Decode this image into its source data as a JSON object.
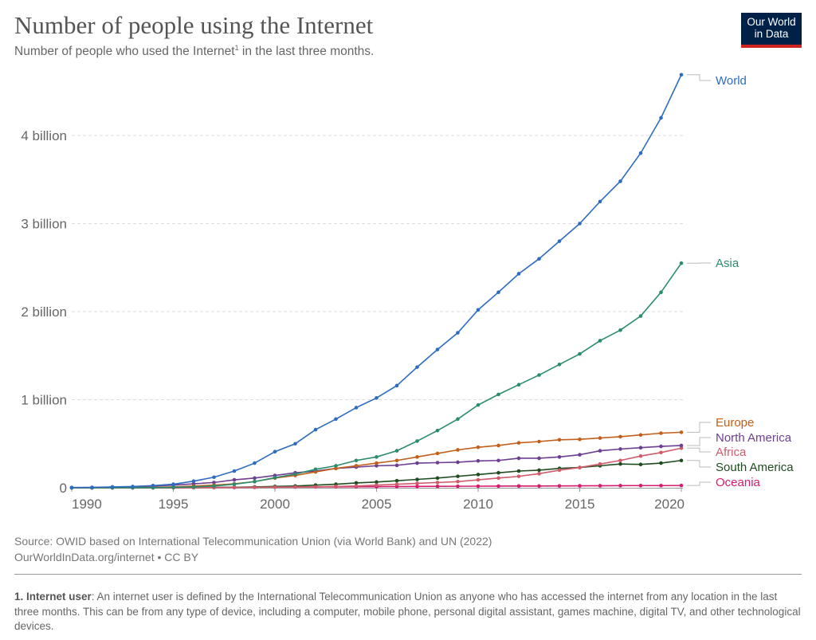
{
  "header": {
    "title": "Number of people using the Internet",
    "subtitle_pre": "Number of people who used the Internet",
    "subtitle_sup": "1",
    "subtitle_post": " in the last three months.",
    "logo_line1": "Our World",
    "logo_line2": "in Data"
  },
  "footer": {
    "source": "Source: OWID based on International Telecommunication Union (via World Bank) and UN (2022)",
    "link": "OurWorldInData.org/internet • CC BY",
    "note_title": "1. Internet user",
    "note_text": ": An internet user is defined by the International Telecommunication Union as anyone who has accessed the internet from any location in the last three months. This can be from any type of device, including a computer, mobile phone, personal digital assistant, games machine, digital TV, and other technological devices."
  },
  "chart_data": {
    "type": "line",
    "title": "Number of people using the Internet",
    "x": [
      1990,
      1991,
      1992,
      1993,
      1994,
      1995,
      1996,
      1997,
      1998,
      1999,
      2000,
      2001,
      2002,
      2003,
      2004,
      2005,
      2006,
      2007,
      2008,
      2009,
      2010,
      2011,
      2012,
      2013,
      2014,
      2015,
      2016,
      2017,
      2018,
      2019,
      2020
    ],
    "xlim": [
      1990,
      2020
    ],
    "ylim": [
      0,
      4.8
    ],
    "x_ticks": [
      {
        "value": 1990,
        "label": "1990"
      },
      {
        "value": 1995,
        "label": "1995"
      },
      {
        "value": 2000,
        "label": "2000"
      },
      {
        "value": 2005,
        "label": "2005"
      },
      {
        "value": 2010,
        "label": "2010"
      },
      {
        "value": 2015,
        "label": "2015"
      },
      {
        "value": 2020,
        "label": "2020"
      }
    ],
    "y_ticks": [
      {
        "value": 0,
        "label": "0"
      },
      {
        "value": 1,
        "label": "1 billion"
      },
      {
        "value": 2,
        "label": "2 billion"
      },
      {
        "value": 3,
        "label": "3 billion"
      },
      {
        "value": 4,
        "label": "4 billion"
      }
    ],
    "y_unit": "billion",
    "grid": "horizontal dashed",
    "legend": "right, labels at line ends",
    "series": [
      {
        "name": "World",
        "color": "#2d6cc0",
        "values": [
          0.003,
          0.004,
          0.01,
          0.014,
          0.025,
          0.04,
          0.075,
          0.12,
          0.19,
          0.28,
          0.41,
          0.5,
          0.66,
          0.78,
          0.91,
          1.02,
          1.16,
          1.37,
          1.57,
          1.76,
          2.02,
          2.22,
          2.43,
          2.6,
          2.8,
          3.0,
          3.25,
          3.48,
          3.8,
          4.2,
          4.69
        ]
      },
      {
        "name": "Asia",
        "color": "#2a8c6e",
        "values": [
          0,
          0,
          0,
          0.001,
          0.002,
          0.005,
          0.01,
          0.02,
          0.04,
          0.07,
          0.115,
          0.155,
          0.21,
          0.25,
          0.31,
          0.35,
          0.42,
          0.53,
          0.65,
          0.78,
          0.94,
          1.06,
          1.17,
          1.28,
          1.4,
          1.52,
          1.67,
          1.79,
          1.95,
          2.22,
          2.55
        ]
      },
      {
        "name": "Europe",
        "color": "#c15f1b",
        "values": [
          0,
          0,
          0.001,
          0.002,
          0.005,
          0.01,
          0.02,
          0.03,
          0.045,
          0.07,
          0.11,
          0.14,
          0.18,
          0.22,
          0.25,
          0.28,
          0.31,
          0.35,
          0.39,
          0.43,
          0.46,
          0.48,
          0.51,
          0.525,
          0.545,
          0.55,
          0.565,
          0.58,
          0.6,
          0.62,
          0.63
        ]
      },
      {
        "name": "North America",
        "color": "#6d3e91",
        "values": [
          0.002,
          0.003,
          0.005,
          0.01,
          0.02,
          0.03,
          0.045,
          0.06,
          0.09,
          0.11,
          0.14,
          0.17,
          0.19,
          0.22,
          0.235,
          0.25,
          0.255,
          0.28,
          0.285,
          0.29,
          0.305,
          0.31,
          0.335,
          0.335,
          0.35,
          0.375,
          0.42,
          0.44,
          0.455,
          0.47,
          0.48
        ]
      },
      {
        "name": "Africa",
        "color": "#cf5b6b",
        "values": [
          0,
          0,
          0,
          0,
          0,
          0,
          0.001,
          0.002,
          0.003,
          0.005,
          0.007,
          0.01,
          0.01,
          0.015,
          0.02,
          0.03,
          0.04,
          0.05,
          0.06,
          0.07,
          0.09,
          0.11,
          0.13,
          0.16,
          0.2,
          0.23,
          0.27,
          0.31,
          0.36,
          0.4,
          0.45
        ]
      },
      {
        "name": "South America",
        "color": "#1f4d1f",
        "values": [
          0,
          0,
          0,
          0,
          0,
          0.001,
          0.002,
          0.003,
          0.005,
          0.01,
          0.015,
          0.02,
          0.03,
          0.04,
          0.055,
          0.065,
          0.08,
          0.095,
          0.11,
          0.13,
          0.15,
          0.17,
          0.19,
          0.2,
          0.22,
          0.23,
          0.25,
          0.27,
          0.265,
          0.28,
          0.31
        ]
      },
      {
        "name": "Oceania",
        "color": "#d41b6e",
        "values": [
          0,
          0,
          0,
          0,
          0.001,
          0.002,
          0.003,
          0.004,
          0.005,
          0.007,
          0.008,
          0.009,
          0.01,
          0.011,
          0.012,
          0.013,
          0.014,
          0.015,
          0.016,
          0.017,
          0.018,
          0.019,
          0.02,
          0.02,
          0.021,
          0.022,
          0.023,
          0.024,
          0.025,
          0.025,
          0.026
        ]
      }
    ]
  }
}
